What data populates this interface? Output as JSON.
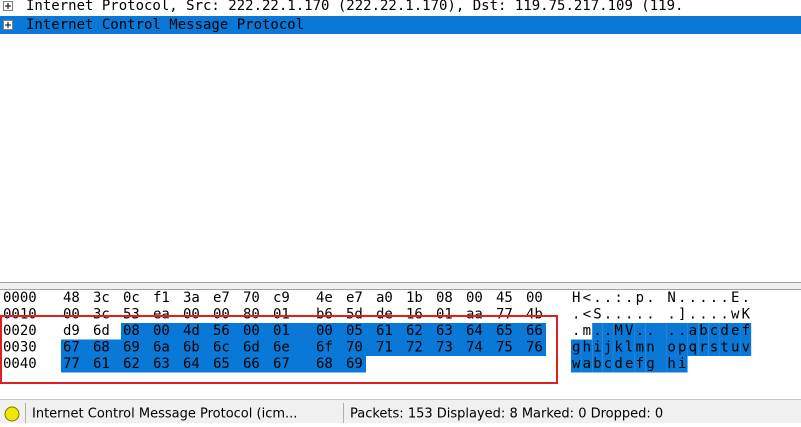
{
  "tree": [
    {
      "label": "Internet Protocol, Src: 222.22.1.170 (222.22.1.170), Dst: 119.75.217.109 (119.",
      "selected": false
    },
    {
      "label": "Internet Control Message Protocol",
      "selected": true
    }
  ],
  "hex_dump": {
    "selection": {
      "start": 34,
      "length": 40
    },
    "rows": [
      {
        "offset": "0000",
        "bytes": [
          "48",
          "3c",
          "0c",
          "f1",
          "3a",
          "e7",
          "70",
          "c9",
          "4e",
          "e7",
          "a0",
          "1b",
          "08",
          "00",
          "45",
          "00"
        ],
        "ascii": [
          "H",
          "<",
          ".",
          ".",
          ":",
          ".",
          "p",
          ".",
          "N",
          ".",
          ".",
          ".",
          ".",
          ".",
          "E",
          "."
        ]
      },
      {
        "offset": "0010",
        "bytes": [
          "00",
          "3c",
          "53",
          "ea",
          "00",
          "00",
          "80",
          "01",
          "b6",
          "5d",
          "de",
          "16",
          "01",
          "aa",
          "77",
          "4b"
        ],
        "ascii": [
          ".",
          "<",
          "S",
          ".",
          ".",
          ".",
          ".",
          ".",
          ".",
          "]",
          ".",
          ".",
          ".",
          ".",
          "w",
          "K"
        ]
      },
      {
        "offset": "0020",
        "bytes": [
          "d9",
          "6d",
          "08",
          "00",
          "4d",
          "56",
          "00",
          "01",
          "00",
          "05",
          "61",
          "62",
          "63",
          "64",
          "65",
          "66"
        ],
        "ascii": [
          ".",
          "m",
          ".",
          ".",
          "M",
          "V",
          ".",
          ".",
          ".",
          ".",
          "a",
          "b",
          "c",
          "d",
          "e",
          "f"
        ]
      },
      {
        "offset": "0030",
        "bytes": [
          "67",
          "68",
          "69",
          "6a",
          "6b",
          "6c",
          "6d",
          "6e",
          "6f",
          "70",
          "71",
          "72",
          "73",
          "74",
          "75",
          "76"
        ],
        "ascii": [
          "g",
          "h",
          "i",
          "j",
          "k",
          "l",
          "m",
          "n",
          "o",
          "p",
          "q",
          "r",
          "s",
          "t",
          "u",
          "v"
        ]
      },
      {
        "offset": "0040",
        "bytes": [
          "77",
          "61",
          "62",
          "63",
          "64",
          "65",
          "66",
          "67",
          "68",
          "69"
        ],
        "ascii": [
          "w",
          "a",
          "b",
          "c",
          "d",
          "e",
          "f",
          "g",
          "h",
          "i"
        ]
      }
    ]
  },
  "status_bar": {
    "field": "Internet Control Message Protocol (icm...",
    "packets": "Packets: 153 Displayed: 8 Marked: 0 Dropped: 0"
  }
}
